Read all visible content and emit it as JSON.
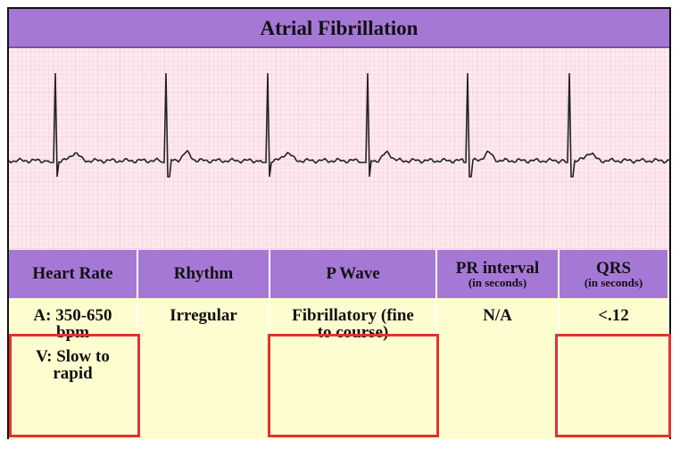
{
  "title": "Atrial Fibrillation",
  "table": {
    "headers": [
      {
        "label": "Heart Rate"
      },
      {
        "label": "Rhythm"
      },
      {
        "label": "P Wave"
      },
      {
        "label": "PR interval",
        "note": "(in seconds)"
      },
      {
        "label": "QRS",
        "note": "(in seconds)"
      }
    ],
    "cells": [
      {
        "lines": [
          "A: 350-650 bpm",
          "V: Slow to rapid"
        ]
      },
      {
        "lines": [
          "Irregular"
        ]
      },
      {
        "lines": [
          "Fibrillatory (fine to course)"
        ]
      },
      {
        "lines": [
          "N/A"
        ]
      },
      {
        "lines": [
          "<.12"
        ]
      }
    ]
  }
}
